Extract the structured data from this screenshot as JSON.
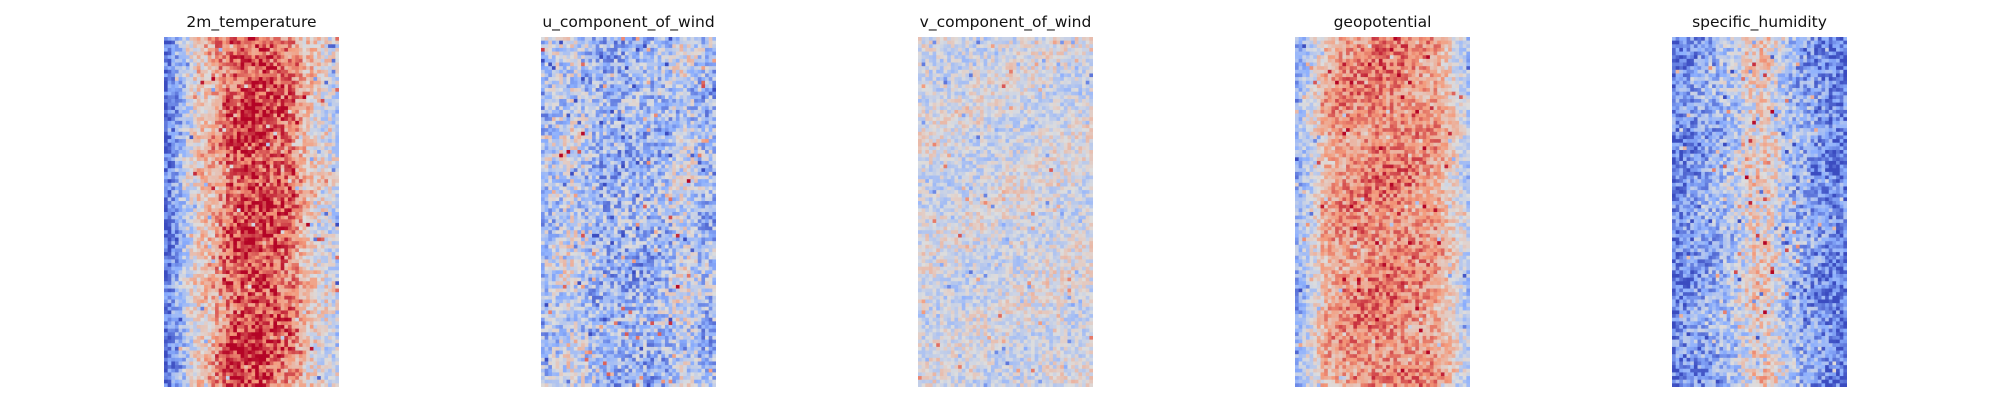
{
  "chart_data": [
    {
      "type": "heatmap",
      "title": "2m_temperature",
      "colormap": "coolwarm",
      "rows": 96,
      "cols": 48,
      "structure": "warm central band, cooler edges, coolest along left edge",
      "band_profile": [
        0.05,
        0.3,
        0.55,
        0.66,
        0.82,
        0.9,
        0.9,
        0.86,
        0.8,
        0.62,
        0.5,
        0.42
      ],
      "noise": 0.18
    },
    {
      "type": "heatmap",
      "title": "u_component_of_wind",
      "colormap": "coolwarm",
      "rows": 96,
      "cols": 48,
      "structure": "mostly cool field with scattered warm streaks",
      "band_profile": [
        0.32,
        0.4,
        0.45,
        0.35,
        0.3,
        0.3,
        0.3,
        0.3,
        0.35,
        0.45,
        0.34,
        0.32
      ],
      "noise": 0.22
    },
    {
      "type": "heatmap",
      "title": "v_component_of_wind",
      "colormap": "coolwarm",
      "rows": 96,
      "cols": 48,
      "structure": "near-neutral field with isolated warm and cool eddies",
      "band_profile": [
        0.47,
        0.47,
        0.46,
        0.46,
        0.46,
        0.46,
        0.47,
        0.47,
        0.47,
        0.47,
        0.47,
        0.47
      ],
      "noise": 0.14
    },
    {
      "type": "heatmap",
      "title": "geopotential",
      "colormap": "coolwarm",
      "rows": 96,
      "cols": 48,
      "structure": "warm central band, cool edges",
      "band_profile": [
        0.25,
        0.45,
        0.68,
        0.72,
        0.75,
        0.78,
        0.78,
        0.76,
        0.74,
        0.7,
        0.55,
        0.35
      ],
      "noise": 0.15
    },
    {
      "type": "heatmap",
      "title": "specific_humidity",
      "colormap": "coolwarm",
      "rows": 96,
      "cols": 48,
      "structure": "cool field with a moist warm central streak",
      "band_profile": [
        0.12,
        0.2,
        0.26,
        0.3,
        0.38,
        0.55,
        0.58,
        0.4,
        0.28,
        0.22,
        0.15,
        0.12
      ],
      "noise": 0.2
    }
  ]
}
